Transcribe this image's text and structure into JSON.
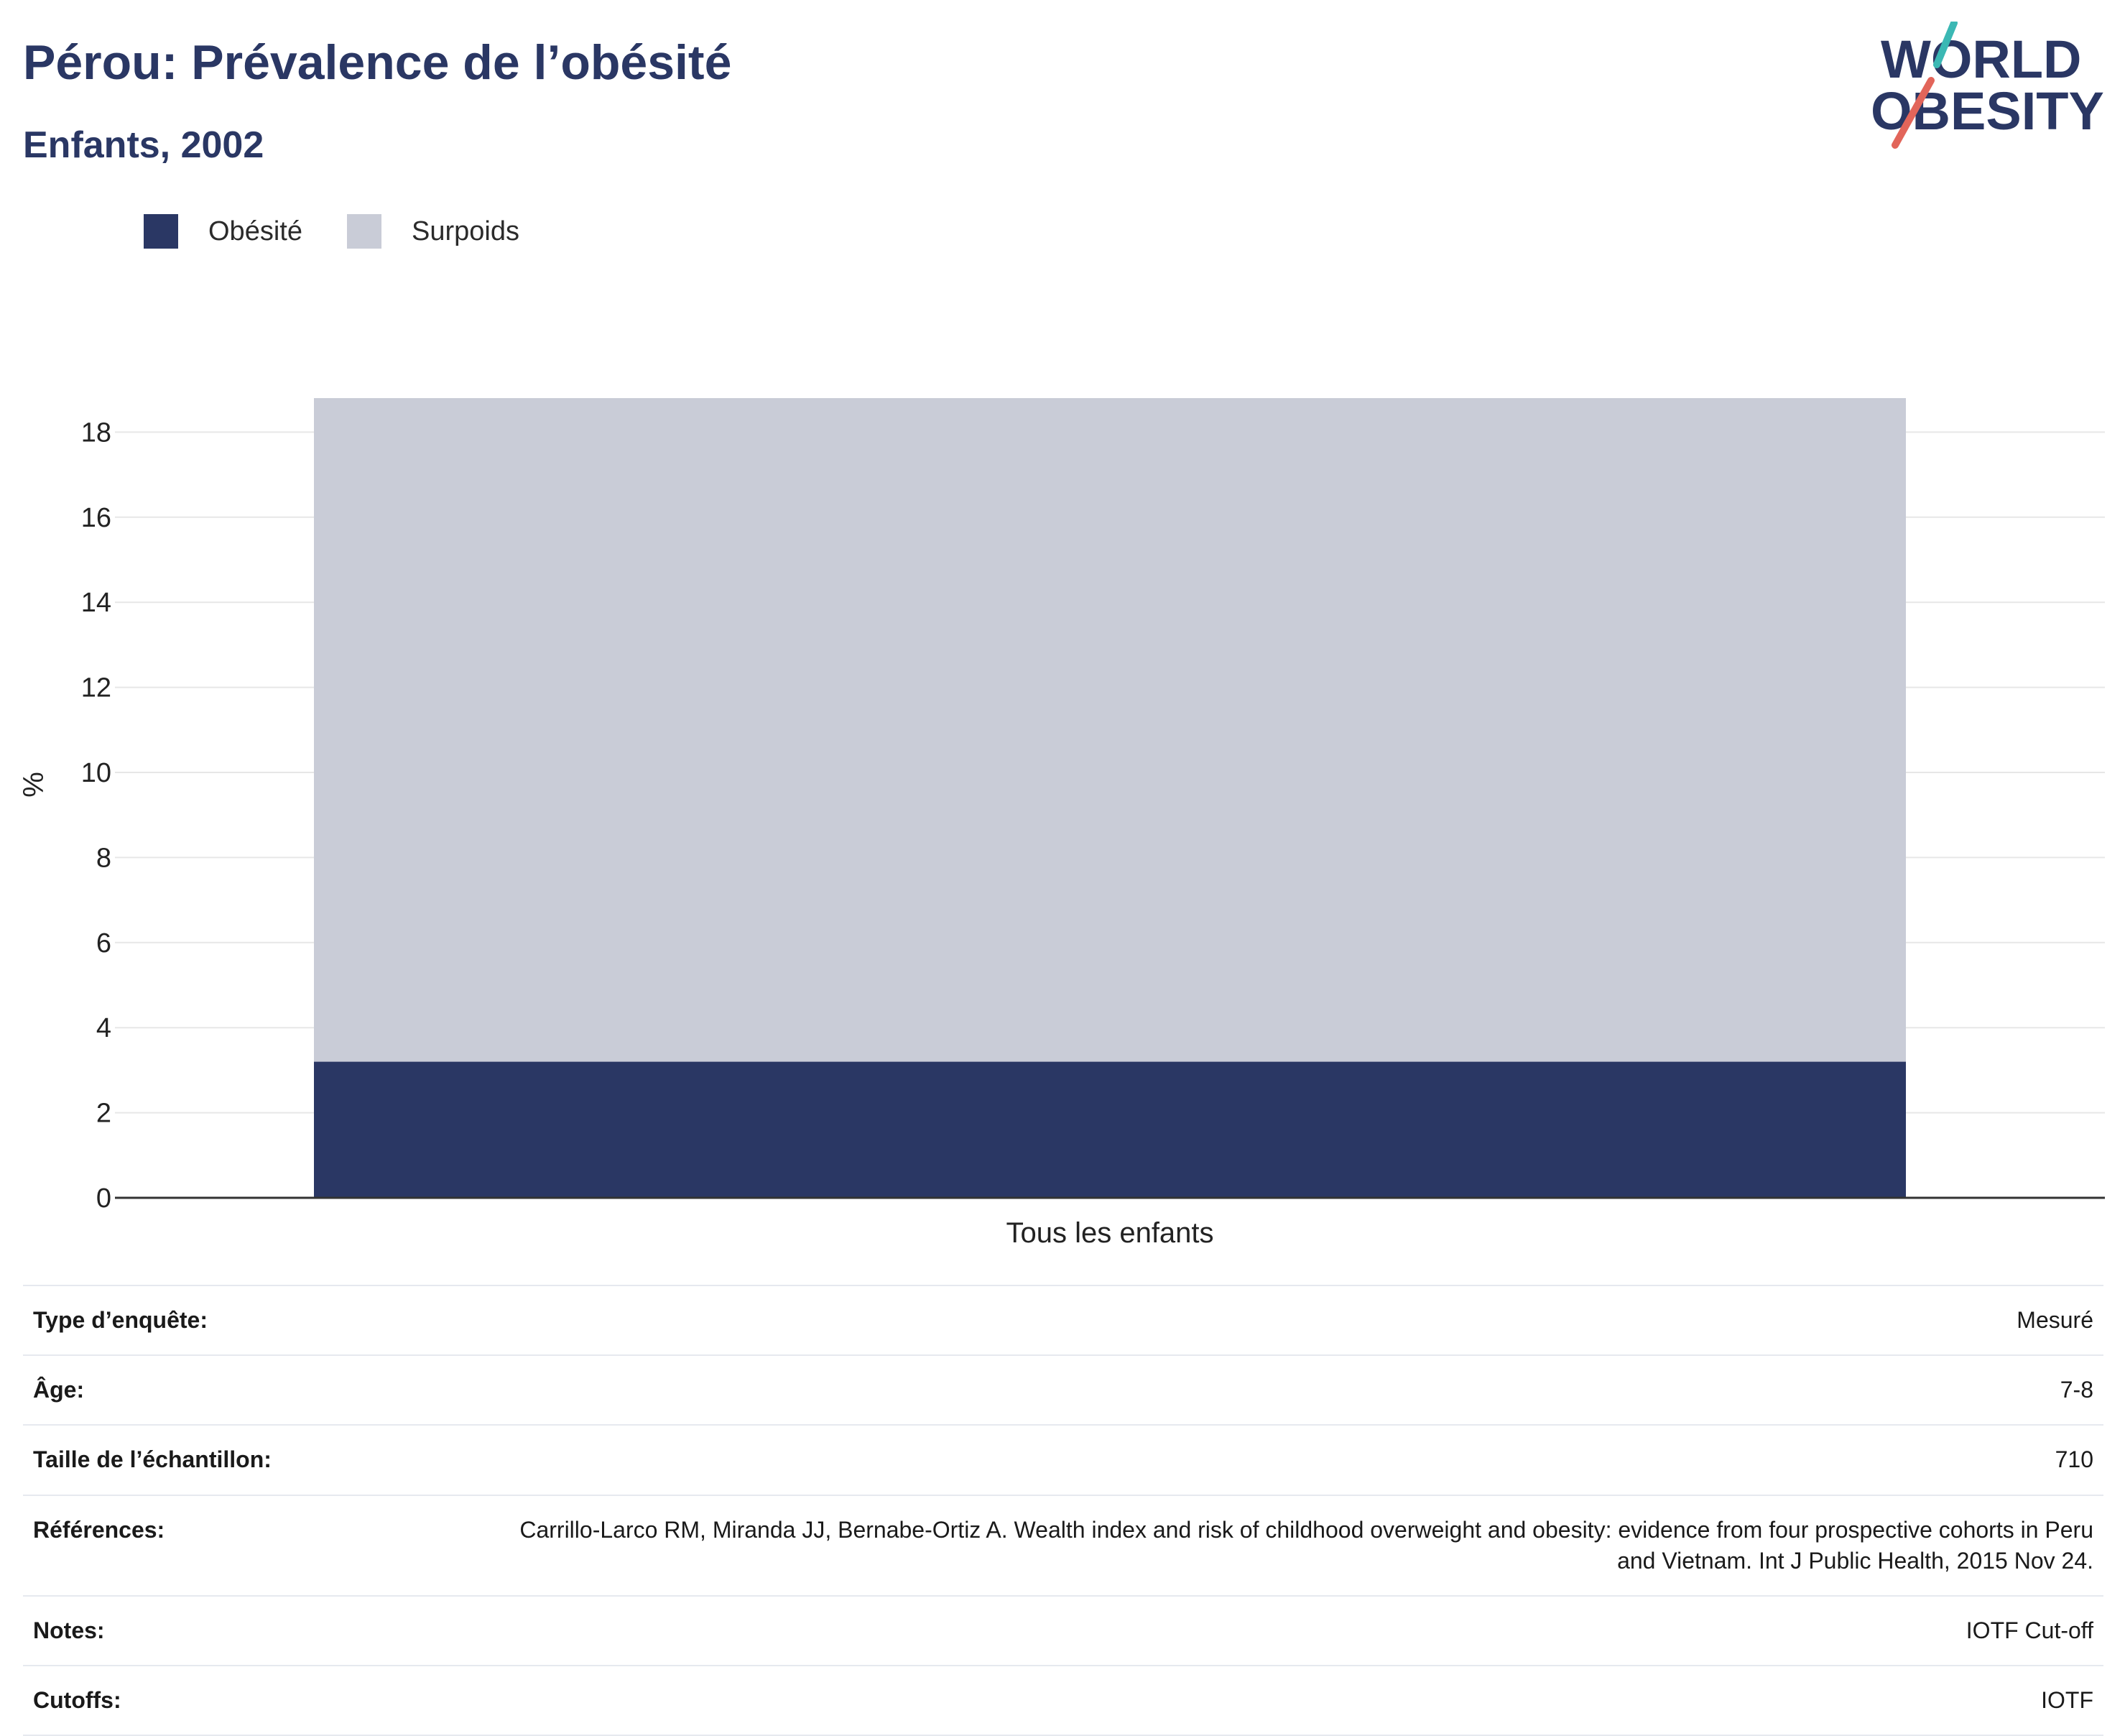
{
  "header": {
    "title": "Pérou: Prévalence de l’obésité",
    "subtitle": "Enfants, 2002"
  },
  "logo": {
    "line1": "WORLD",
    "line2": "OBESITY",
    "colors": {
      "text": "#2a3764",
      "slash_top": "#3bb8b4",
      "slash_bottom": "#e2655a"
    }
  },
  "legend": [
    {
      "label": "Obésité",
      "color": "#2a3764"
    },
    {
      "label": "Surpoids",
      "color": "#c9ccd7"
    }
  ],
  "chart_data": {
    "type": "bar",
    "stacked": true,
    "categories": [
      "Tous les enfants"
    ],
    "series": [
      {
        "name": "Obésité",
        "values": [
          3.2
        ],
        "color": "#2a3764"
      },
      {
        "name": "Surpoids",
        "values": [
          15.6
        ],
        "color": "#c9ccd7"
      }
    ],
    "ylabel": "%",
    "ylim": [
      0,
      19
    ],
    "yticks": [
      0,
      2,
      4,
      6,
      8,
      10,
      12,
      14,
      16,
      18
    ],
    "grid": true,
    "legend_position": "top-left"
  },
  "info_table": [
    {
      "label": "Type d’enquête:",
      "value": "Mesuré"
    },
    {
      "label": "Âge:",
      "value": "7-8"
    },
    {
      "label": "Taille de l’échantillon:",
      "value": "710"
    },
    {
      "label": "Références:",
      "value": "Carrillo-Larco RM, Miranda JJ, Bernabe-Ortiz A. Wealth index and risk of childhood overweight and obesity: evidence from four prospective cohorts in Peru and Vietnam. Int J Public Health, 2015 Nov 24."
    },
    {
      "label": "Notes:",
      "value": "IOTF Cut-off"
    },
    {
      "label": "Cutoffs:",
      "value": "IOTF"
    }
  ]
}
